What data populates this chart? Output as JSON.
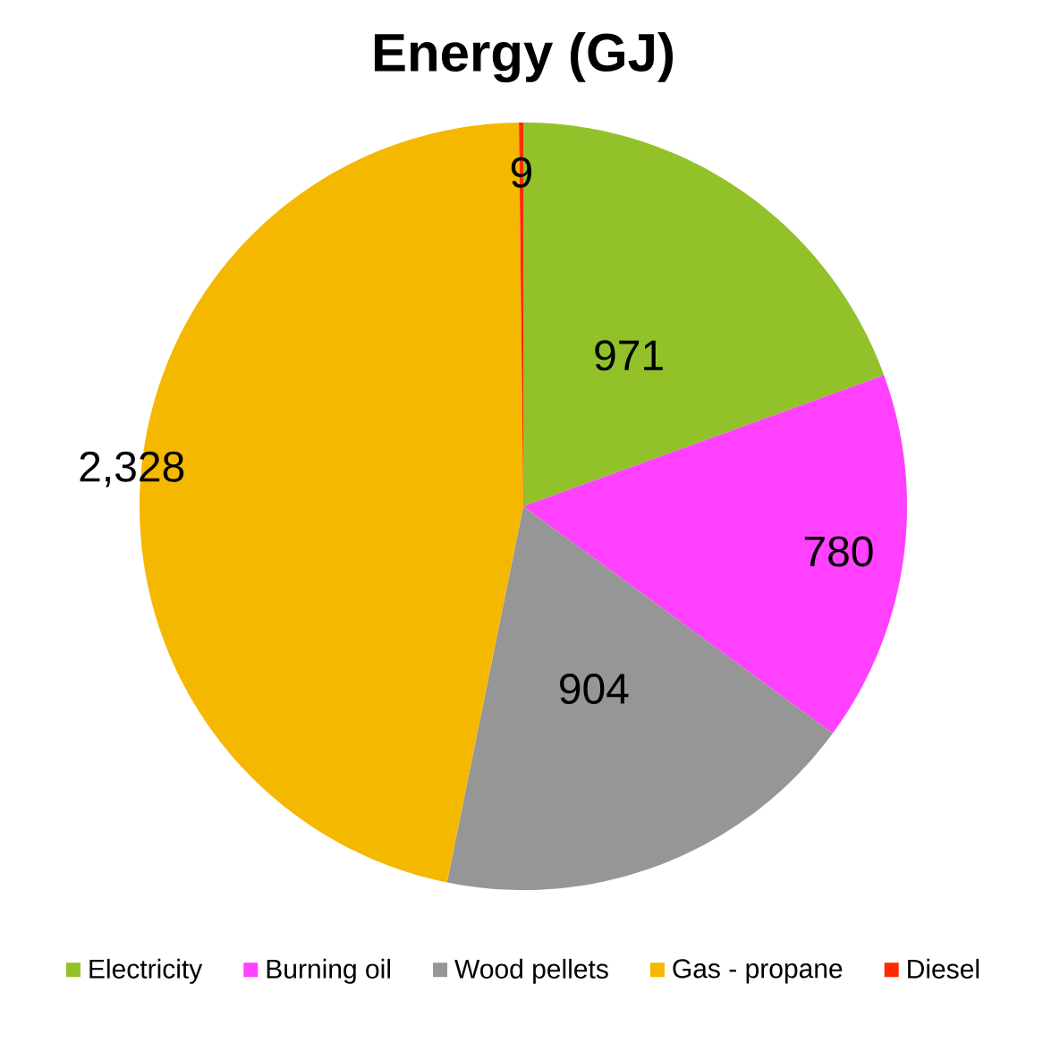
{
  "chart_data": {
    "type": "pie",
    "title": "Energy (GJ)",
    "categories": [
      "Electricity",
      "Burning oil",
      "Wood pellets",
      "Gas - propane",
      "Diesel"
    ],
    "values": [
      971,
      780,
      904,
      2328,
      9
    ],
    "value_labels": [
      "971",
      "780",
      "904",
      "2,328",
      "9"
    ],
    "colors": [
      "#92c12a",
      "#ff40ff",
      "#969696",
      "#f5b800",
      "#ff2a00"
    ],
    "legend": "bottom"
  }
}
